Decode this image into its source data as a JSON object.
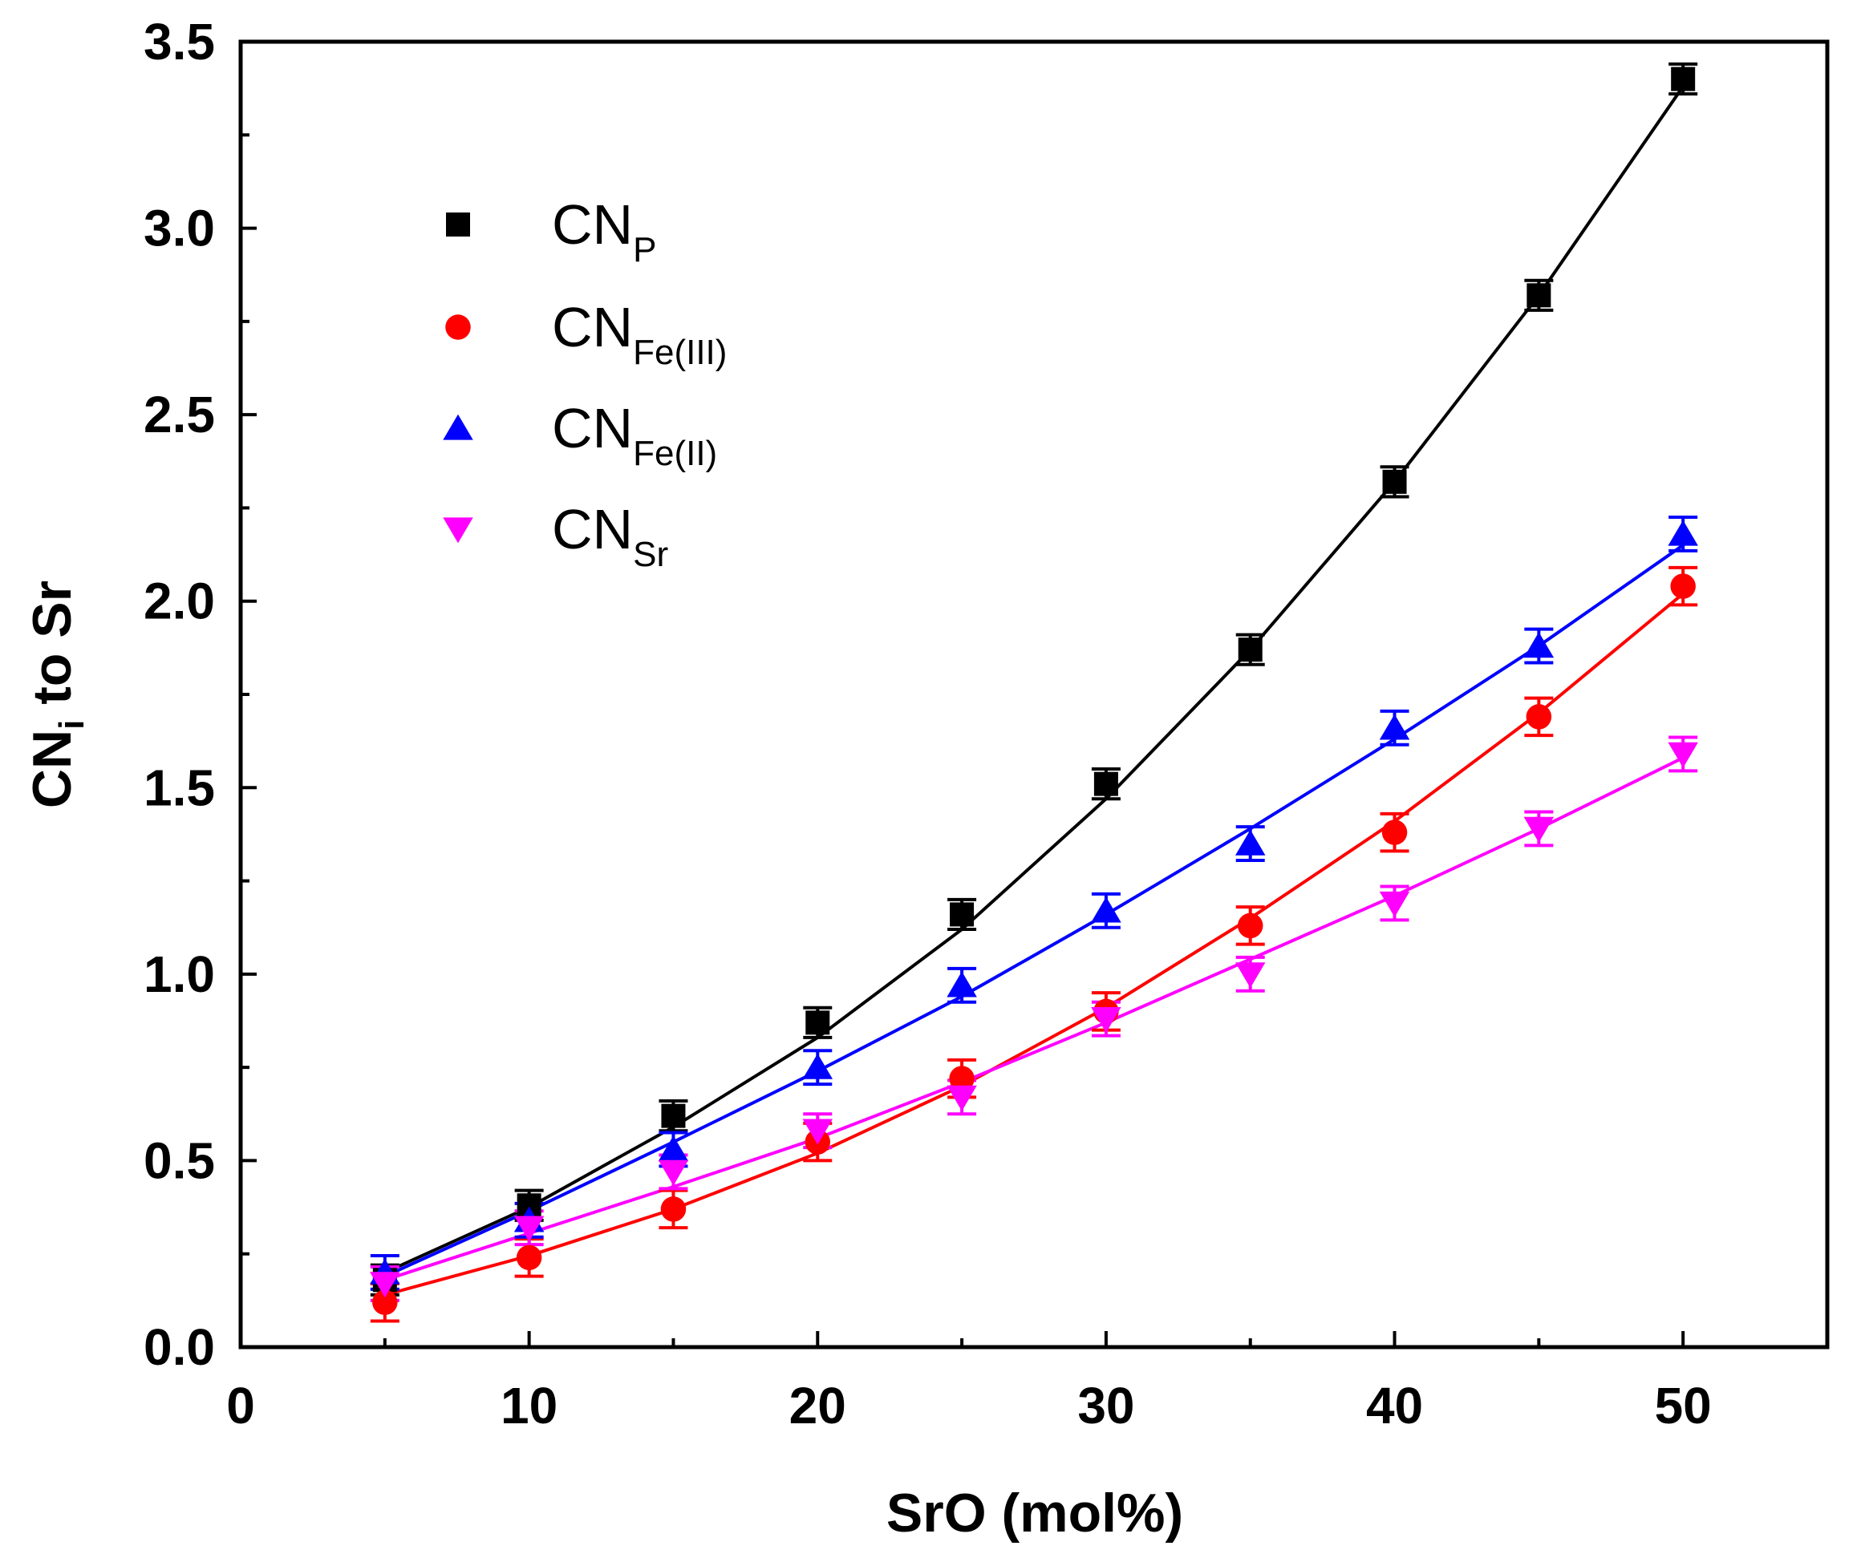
{
  "chart_data": {
    "type": "scatter",
    "title": "",
    "xlabel": "SrO (mol%)",
    "ylabel": {
      "main": "CN",
      "sub": "i",
      "suffix": " to Sr"
    },
    "xlim": [
      0,
      55
    ],
    "ylim": [
      0,
      3.5
    ],
    "x_ticks": [
      "0",
      "10",
      "20",
      "30",
      "40",
      "50"
    ],
    "y_ticks": [
      "0.0",
      "0.5",
      "1.0",
      "1.5",
      "2.0",
      "2.5",
      "3.0",
      "3.5"
    ],
    "grid": false,
    "legend_position": "top-left",
    "x": [
      5,
      10,
      15,
      20,
      25,
      30,
      35,
      40,
      45,
      50
    ],
    "series": [
      {
        "name": {
          "main": "CN",
          "sub": "P"
        },
        "color": "#000000",
        "marker": "square",
        "values": [
          0.18,
          0.38,
          0.62,
          0.87,
          1.16,
          1.51,
          1.87,
          2.32,
          2.82,
          3.4
        ],
        "errors": [
          0.04,
          0.04,
          0.04,
          0.04,
          0.04,
          0.04,
          0.04,
          0.04,
          0.04,
          0.04
        ],
        "fit": [
          0.2,
          0.375,
          0.59,
          0.83,
          1.12,
          1.47,
          1.87,
          2.32,
          2.82,
          3.38
        ]
      },
      {
        "name": {
          "main": "CN",
          "sub": "Fe(III)"
        },
        "color": "#ff0000",
        "marker": "circle",
        "values": [
          0.12,
          0.24,
          0.37,
          0.55,
          0.72,
          0.9,
          1.13,
          1.38,
          1.69,
          2.04
        ],
        "errors": [
          0.05,
          0.05,
          0.05,
          0.05,
          0.05,
          0.05,
          0.05,
          0.05,
          0.05,
          0.05
        ],
        "fit": [
          0.14,
          0.245,
          0.37,
          0.52,
          0.7,
          0.91,
          1.15,
          1.41,
          1.7,
          2.02
        ]
      },
      {
        "name": {
          "main": "CN",
          "sub": "Fe(II)"
        },
        "color": "#0000ff",
        "marker": "triangle-up",
        "values": [
          0.2,
          0.34,
          0.53,
          0.75,
          0.97,
          1.17,
          1.35,
          1.66,
          1.88,
          2.18
        ],
        "errors": [
          0.045,
          0.045,
          0.045,
          0.045,
          0.045,
          0.045,
          0.045,
          0.045,
          0.045,
          0.045
        ],
        "fit": [
          0.19,
          0.365,
          0.55,
          0.74,
          0.94,
          1.16,
          1.39,
          1.63,
          1.88,
          2.15
        ]
      },
      {
        "name": {
          "main": "CN",
          "sub": "Sr"
        },
        "color": "#ff00ff",
        "marker": "triangle-down",
        "values": [
          0.17,
          0.32,
          0.47,
          0.58,
          0.67,
          0.88,
          1.0,
          1.19,
          1.39,
          1.59
        ],
        "errors": [
          0.045,
          0.045,
          0.045,
          0.045,
          0.045,
          0.045,
          0.045,
          0.045,
          0.045,
          0.045
        ],
        "fit": [
          0.18,
          0.305,
          0.43,
          0.56,
          0.71,
          0.87,
          1.04,
          1.21,
          1.39,
          1.58
        ]
      }
    ]
  }
}
